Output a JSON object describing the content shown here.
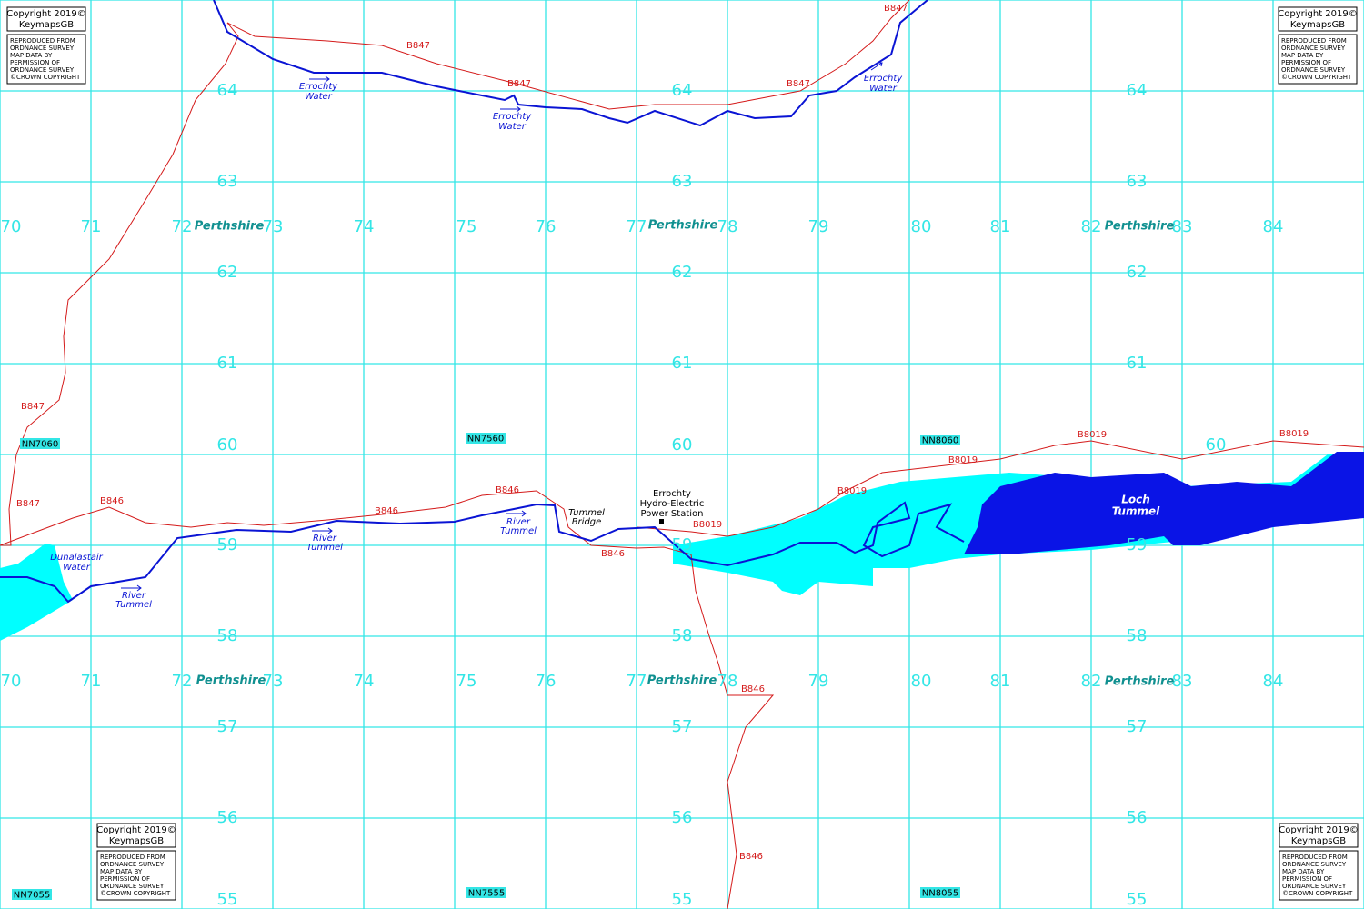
{
  "map": {
    "eastings": [
      "70",
      "71",
      "72",
      "73",
      "74",
      "75",
      "76",
      "77",
      "78",
      "79",
      "80",
      "81",
      "82",
      "83",
      "84"
    ],
    "northings": [
      "64",
      "63",
      "62",
      "61",
      "60",
      "59",
      "58",
      "57",
      "56",
      "55"
    ],
    "grid_squares": [
      "NN7060",
      "NN7560",
      "NN8060",
      "NN7055",
      "NN7555",
      "NN8055"
    ],
    "county": "Perthshire",
    "copyright": {
      "line1": "Copyright 2019©",
      "line2": "KeymapsGB",
      "notice": [
        "REPRODUCED FROM",
        "ORDNANCE SURVEY",
        "MAP DATA BY",
        "PERMISSION OF",
        "ORDNANCE SURVEY",
        "©CROWN COPYRIGHT"
      ]
    },
    "roads": {
      "b847": "B847",
      "b846": "B846",
      "b8019": "B8019"
    },
    "waters": {
      "errochty": [
        "Errochty",
        "Water"
      ],
      "tummel": [
        "River",
        "Tummel"
      ],
      "dunalastair": [
        "Dunalastair",
        "Water"
      ],
      "loch": [
        "Loch",
        "Tummel"
      ]
    },
    "places": {
      "bridge": [
        "Tummel",
        "Bridge"
      ],
      "station": [
        "Errochty",
        "Hydro-Electric",
        "Power Station"
      ]
    }
  }
}
